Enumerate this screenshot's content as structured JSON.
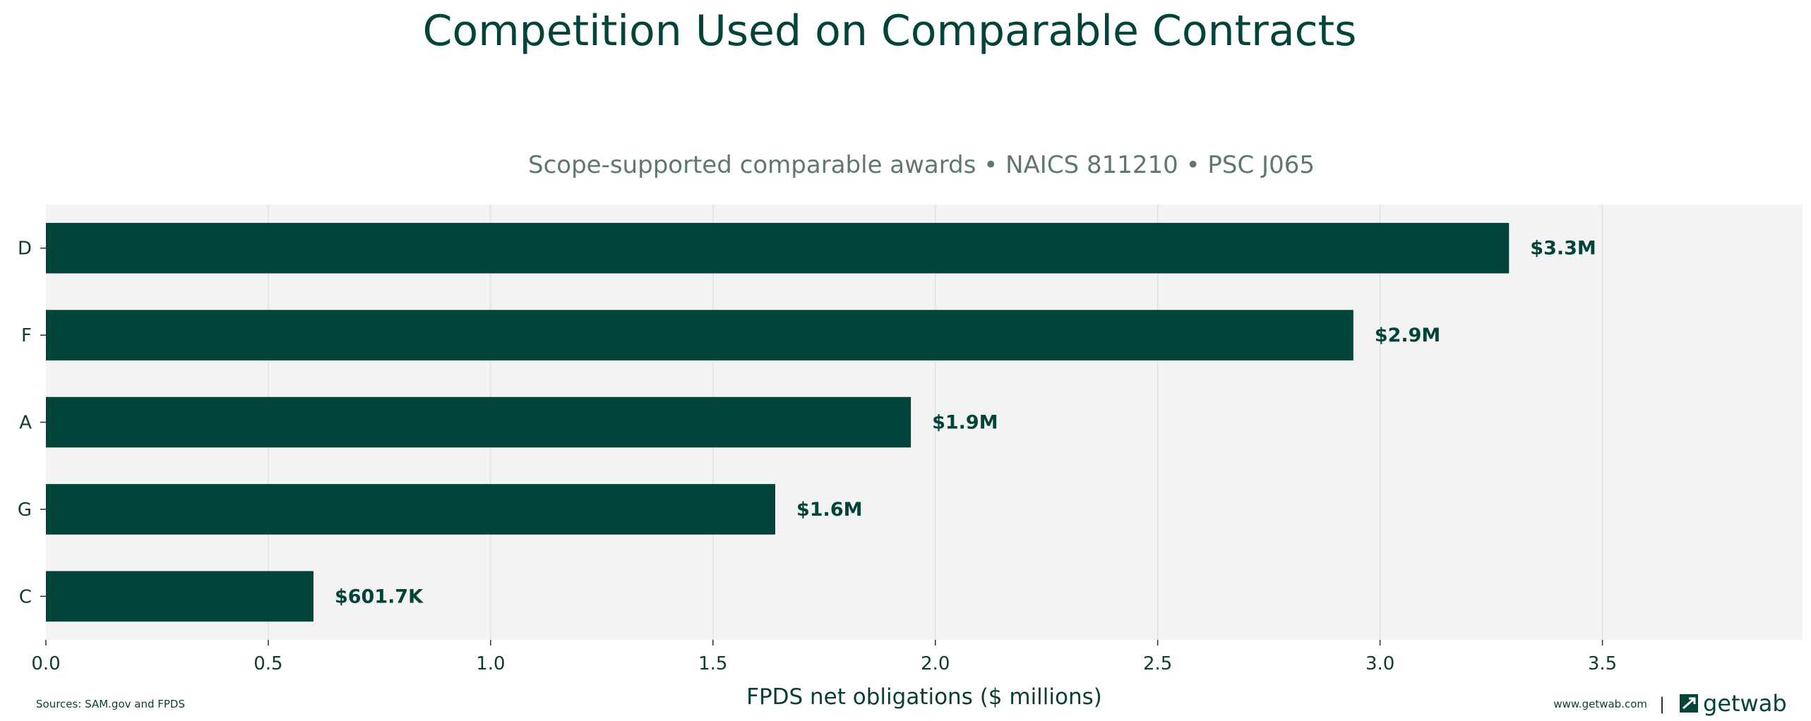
{
  "chart_data": {
    "type": "bar",
    "orientation": "horizontal",
    "title": "Competition Used on Comparable Contracts",
    "subtitle": "Scope-supported comparable awards • NAICS 811210 • PSC J065",
    "xlabel": "FPDS net obligations ($ millions)",
    "ylabel": "",
    "categories": [
      "D",
      "F",
      "A",
      "G",
      "C"
    ],
    "values": [
      3.29,
      2.94,
      1.945,
      1.64,
      0.6017
    ],
    "data_labels": [
      "$3.3M",
      "$2.9M",
      "$1.9M",
      "$1.6M",
      "$601.7K"
    ],
    "xlim": [
      0,
      3.95
    ],
    "xticks": [
      0.0,
      0.5,
      1.0,
      1.5,
      2.0,
      2.5,
      3.0,
      3.5
    ],
    "xtick_labels": [
      "0.0",
      "0.5",
      "1.0",
      "1.5",
      "2.0",
      "2.5",
      "3.0",
      "3.5"
    ],
    "grid": "vertical",
    "legend": "none",
    "colors": {
      "bar": "#02443a",
      "plot_background": "#f2f3f2",
      "grid": "#dde3e0",
      "title": "#02443a",
      "subtitle": "#5f7771",
      "text": "#0c3d34"
    }
  },
  "footer": {
    "source": "Sources: SAM.gov and FPDS",
    "site": "www.getwab.com",
    "separator": "|",
    "brand": "getwab",
    "brand_icon": "getwab-logo-icon"
  }
}
